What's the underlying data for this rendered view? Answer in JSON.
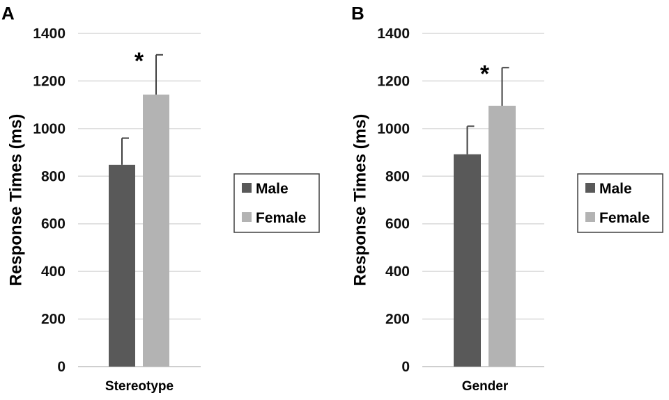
{
  "chart_data": [
    {
      "panel": "A",
      "type": "bar",
      "categories": [
        "Stereotype"
      ],
      "series": [
        {
          "name": "Male",
          "values": [
            848
          ],
          "error": [
            112
          ]
        },
        {
          "name": "Female",
          "values": [
            1143
          ],
          "error": [
            167
          ]
        }
      ],
      "annotation": "*",
      "ylabel": "Response Times (ms)",
      "xlabel": "",
      "ylim": [
        0,
        1400
      ],
      "yticks": [
        "0",
        "200",
        "400",
        "600",
        "800",
        "1000",
        "1200",
        "1400"
      ],
      "grid": true,
      "legend": "right"
    },
    {
      "panel": "B",
      "type": "bar",
      "categories": [
        "Gender"
      ],
      "series": [
        {
          "name": "Male",
          "values": [
            892
          ],
          "error": [
            118
          ]
        },
        {
          "name": "Female",
          "values": [
            1096
          ],
          "error": [
            160
          ]
        }
      ],
      "annotation": "*",
      "ylabel": "Response Times (ms)",
      "xlabel": "",
      "ylim": [
        0,
        1400
      ],
      "yticks": [
        "0",
        "200",
        "400",
        "600",
        "800",
        "1000",
        "1200",
        "1400"
      ],
      "grid": true,
      "legend": "right"
    }
  ],
  "colors": {
    "Male": "#595959",
    "Female": "#b3b3b3"
  }
}
